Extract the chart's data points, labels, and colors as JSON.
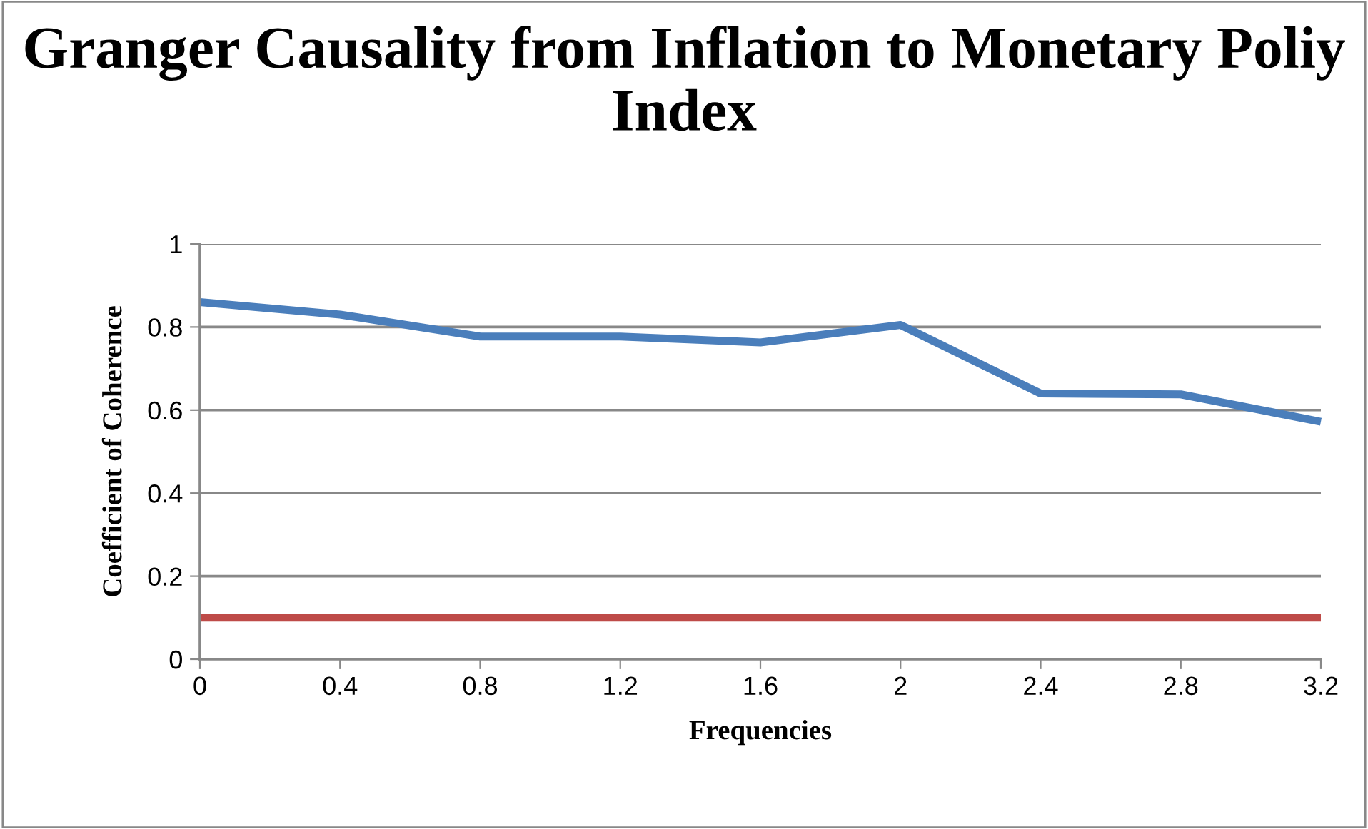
{
  "chart_data": {
    "type": "line",
    "title": "Granger Causality from Inflation to Monetary Poliy Index",
    "xlabel": "Frequencies",
    "ylabel": "Coefficient of Coherence",
    "x": [
      0,
      0.4,
      0.8,
      1.2,
      1.6,
      2.0,
      2.4,
      2.8,
      3.2
    ],
    "series": [
      {
        "color": "#4a7ebb",
        "values": [
          0.86,
          0.83,
          0.777,
          0.777,
          0.763,
          0.805,
          0.64,
          0.638,
          0.572
        ]
      },
      {
        "color": "#be4b48",
        "values": [
          0.1,
          0.1,
          0.1,
          0.1,
          0.1,
          0.1,
          0.1,
          0.1,
          0.1
        ]
      }
    ],
    "xlim": [
      0,
      3.2
    ],
    "xticks": [
      0,
      0.4,
      0.8,
      1.2,
      1.6,
      2,
      2.4,
      2.8,
      3.2
    ],
    "ylim": [
      0,
      1
    ],
    "yticks": [
      0,
      0.2,
      0.4,
      0.6,
      0.8,
      1
    ],
    "grid": "y",
    "legend": false,
    "marker": "none",
    "line_style": "solid"
  }
}
